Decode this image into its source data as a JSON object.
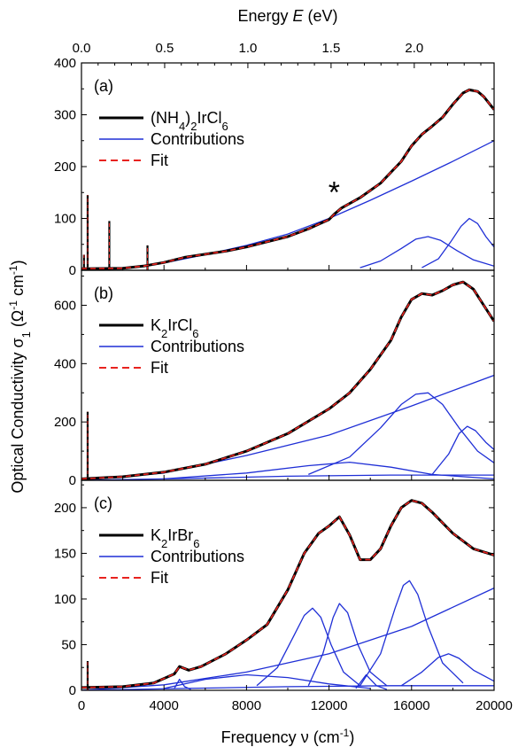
{
  "chart_data": {
    "type": "line",
    "top_axis": {
      "label": "Energy E (eV)",
      "label_prefix": "Energy ",
      "label_var": "E",
      "label_unit": " (eV)",
      "ticks": [
        0.0,
        0.5,
        1.0,
        1.5,
        2.0
      ],
      "tick_labels": [
        "0.0",
        "0.5",
        "1.0",
        "1.5",
        "2.0"
      ],
      "cm_per_eV": 8065.54
    },
    "xlabel": "Frequency ν (cm⁻¹)",
    "xlabel_main": "Frequency ",
    "xlabel_var": "ν",
    "xlabel_unit": " (cm",
    "xlabel_exp": "-1",
    "xlabel_close": ")",
    "ylabel": "Optical Conductivity σ₁ (Ω⁻¹ cm⁻¹)",
    "ylabel_main": "Optical Conductivity ",
    "ylabel_sym": "σ",
    "ylabel_sub": "1",
    "ylabel_unit_open": " (Ω",
    "ylabel_exp1": "-1",
    "ylabel_unit_mid": " cm",
    "ylabel_exp2": "-1",
    "ylabel_close": ")",
    "xlim": [
      0,
      20000
    ],
    "x_ticks": [
      0,
      4000,
      8000,
      12000,
      16000,
      20000
    ],
    "x_tick_labels": [
      "0",
      "4000",
      "8000",
      "12000",
      "16000",
      "20000"
    ],
    "colors": {
      "data": "#000000",
      "contributions": "#1f2fd6",
      "fit": "#e8231f"
    },
    "panels": [
      {
        "label": "(a)",
        "ylim": [
          0,
          400
        ],
        "y_ticks": [
          0,
          100,
          200,
          300,
          400
        ],
        "y_tick_labels": [
          "0",
          "100",
          "200",
          "300",
          "400"
        ],
        "legend": {
          "data_parts": [
            [
              "(NH",
              ""
            ],
            [
              "4",
              "sub"
            ],
            [
              ")",
              ""
            ],
            [
              "2",
              "sub"
            ],
            [
              "IrCl",
              ""
            ],
            [
              "6",
              "sub"
            ]
          ],
          "contributions": "Contributions",
          "fit": "Fit"
        },
        "annotation": {
          "text": "*",
          "x": 12250,
          "y": 155
        },
        "contributions": [
          {
            "x": [
              0,
              2000,
              4000,
              6000,
              8000,
              10000,
              12000,
              14000,
              16000,
              18000,
              20000
            ],
            "y": [
              0,
              4,
              14,
              30,
              48,
              70,
              100,
              135,
              172,
              210,
              250
            ]
          },
          {
            "x": [
              13500,
              14500,
              15500,
              16200,
              16800,
              17400,
              18200,
              19000,
              20000
            ],
            "y": [
              5,
              18,
              42,
              60,
              65,
              58,
              38,
              20,
              8
            ]
          },
          {
            "x": [
              16500,
              17300,
              17900,
              18400,
              18800,
              19200,
              19600,
              20000
            ],
            "y": [
              5,
              22,
              55,
              85,
              100,
              90,
              65,
              45
            ]
          }
        ],
        "spikes": [
          {
            "x": 120,
            "y": 30
          },
          {
            "x": 300,
            "y": 145
          },
          {
            "x": 1350,
            "y": 95
          },
          {
            "x": 3200,
            "y": 48
          }
        ],
        "data": {
          "x": [
            0,
            2000,
            3000,
            4000,
            5000,
            6000,
            7000,
            8000,
            9000,
            10000,
            11000,
            12000,
            12250,
            12600,
            13500,
            14500,
            15500,
            16000,
            16500,
            17000,
            17500,
            18000,
            18500,
            18800,
            19200,
            19500,
            20000
          ],
          "y": [
            3,
            4,
            8,
            15,
            25,
            31,
            37,
            45,
            55,
            65,
            80,
            98,
            108,
            120,
            140,
            168,
            210,
            240,
            262,
            278,
            295,
            320,
            342,
            348,
            345,
            335,
            310
          ]
        }
      },
      {
        "label": "(b)",
        "ylim": [
          0,
          720
        ],
        "y_ticks": [
          0,
          200,
          400,
          600
        ],
        "y_tick_labels": [
          "0",
          "200",
          "400",
          "600"
        ],
        "legend": {
          "data_parts": [
            [
              "K",
              ""
            ],
            [
              "2",
              "sub"
            ],
            [
              "IrCl",
              ""
            ],
            [
              "6",
              "sub"
            ]
          ],
          "contributions": "Contributions",
          "fit": "Fit"
        },
        "contributions": [
          {
            "x": [
              0,
              4000,
              8000,
              12000,
              16000,
              20000
            ],
            "y": [
              0,
              25,
              85,
              155,
              255,
              360
            ]
          },
          {
            "x": [
              11000,
              13000,
              14500,
              15500,
              16200,
              16800,
              17500,
              18300,
              19200,
              20000
            ],
            "y": [
              20,
              80,
              180,
              260,
              295,
              300,
              260,
              180,
              100,
              60
            ]
          },
          {
            "x": [
              17000,
              17800,
              18300,
              18700,
              19100,
              19600,
              20000
            ],
            "y": [
              20,
              90,
              160,
              185,
              170,
              130,
              105
            ]
          },
          {
            "x": [
              4000,
              8000,
              11000,
              13000,
              15000,
              17000,
              20000
            ],
            "y": [
              5,
              25,
              50,
              62,
              45,
              20,
              5
            ]
          },
          {
            "x": [
              0,
              5000,
              10000,
              15000,
              20000
            ],
            "y": [
              0,
              6,
              14,
              18,
              18
            ]
          }
        ],
        "spikes": [
          {
            "x": 300,
            "y": 235
          }
        ],
        "data": {
          "x": [
            0,
            2000,
            4000,
            6000,
            8000,
            10000,
            12000,
            13000,
            14000,
            15000,
            15500,
            16000,
            16500,
            17000,
            17500,
            18000,
            18500,
            19000,
            19500,
            20000
          ],
          "y": [
            5,
            12,
            28,
            55,
            100,
            160,
            245,
            300,
            380,
            480,
            560,
            620,
            640,
            635,
            650,
            670,
            680,
            655,
            600,
            545
          ]
        }
      },
      {
        "label": "(c)",
        "ylim": [
          0,
          230
        ],
        "y_ticks": [
          0,
          50,
          100,
          150,
          200
        ],
        "y_tick_labels": [
          "0",
          "50",
          "100",
          "150",
          "200"
        ],
        "legend": {
          "data_parts": [
            [
              "K",
              ""
            ],
            [
              "2",
              "sub"
            ],
            [
              "IrBr",
              ""
            ],
            [
              "6",
              "sub"
            ]
          ],
          "contributions": "Contributions",
          "fit": "Fit"
        },
        "contributions": [
          {
            "x": [
              0,
              4000,
              8000,
              12000,
              16000,
              20000
            ],
            "y": [
              0,
              6,
              20,
              40,
              70,
              112
            ]
          },
          {
            "x": [
              8500,
              9500,
              10300,
              10800,
              11200,
              11600,
              12100,
              12700,
              13500
            ],
            "y": [
              5,
              25,
              60,
              82,
              90,
              80,
              50,
              20,
              5
            ]
          },
          {
            "x": [
              11000,
              11700,
              12200,
              12500,
              12900,
              13400,
              14000,
              14800
            ],
            "y": [
              5,
              40,
              80,
              95,
              85,
              50,
              20,
              5
            ]
          },
          {
            "x": [
              13500,
              14500,
              15200,
              15600,
              15900,
              16300,
              16800,
              17500,
              18500
            ],
            "y": [
              5,
              40,
              90,
              115,
              120,
              105,
              70,
              30,
              8
            ]
          },
          {
            "x": [
              15500,
              16500,
              17300,
              17800,
              18300,
              19000,
              20000
            ],
            "y": [
              5,
              20,
              36,
              40,
              35,
              22,
              10
            ]
          },
          {
            "x": [
              4000,
              6000,
              8000,
              10000,
              12000,
              14000
            ],
            "y": [
              2,
              12,
              17,
              14,
              7,
              2
            ]
          },
          {
            "x": [
              4500,
              4750,
              5000,
              5300
            ],
            "y": [
              2,
              12,
              4,
              1
            ]
          },
          {
            "x": [
              13300,
              13800,
              14300,
              14800
            ],
            "y": [
              2,
              17,
              5,
              1
            ]
          },
          {
            "x": [
              0,
              5000,
              10000,
              15000,
              20000
            ],
            "y": [
              0,
              2,
              4,
              5,
              5
            ]
          }
        ],
        "spikes": [
          {
            "x": 300,
            "y": 32
          }
        ],
        "data": {
          "x": [
            0,
            2000,
            3500,
            4500,
            4750,
            5200,
            5800,
            7000,
            8000,
            9000,
            10000,
            10800,
            11500,
            12000,
            12500,
            13000,
            13500,
            14000,
            14500,
            15000,
            15500,
            16000,
            16500,
            17000,
            18000,
            19000,
            20000
          ],
          "y": [
            3,
            4,
            8,
            18,
            26,
            22,
            26,
            40,
            55,
            72,
            110,
            150,
            172,
            180,
            190,
            170,
            143,
            143,
            155,
            180,
            200,
            208,
            205,
            195,
            172,
            155,
            148
          ]
        }
      }
    ]
  }
}
